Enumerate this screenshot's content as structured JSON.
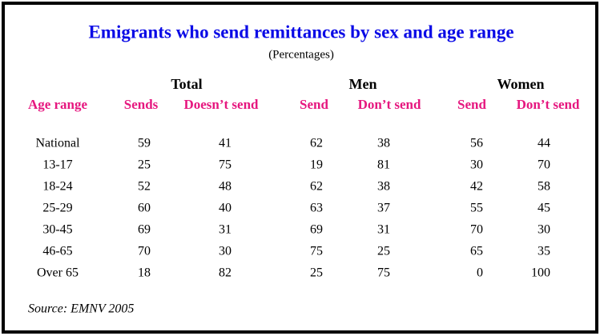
{
  "title": "Emigrants who send remittances by sex and age range",
  "subtitle": "(Percentages)",
  "groups": [
    "Total",
    "Men",
    "Women"
  ],
  "columns": [
    "Age range",
    "Sends",
    "Doesn’t send",
    "Send",
    "Don’t send",
    "Send",
    "Don’t send"
  ],
  "rows": [
    [
      "National",
      59,
      41,
      62,
      38,
      56,
      44
    ],
    [
      "13-17",
      25,
      75,
      19,
      81,
      30,
      70
    ],
    [
      "18-24",
      52,
      48,
      62,
      38,
      42,
      58
    ],
    [
      "25-29",
      60,
      40,
      63,
      37,
      55,
      45
    ],
    [
      "30-45",
      69,
      31,
      69,
      31,
      70,
      30
    ],
    [
      "46-65",
      70,
      30,
      75,
      25,
      65,
      35
    ],
    [
      "Over 65",
      18,
      82,
      25,
      75,
      0,
      100
    ]
  ],
  "source": "Source: EMNV 2005"
}
